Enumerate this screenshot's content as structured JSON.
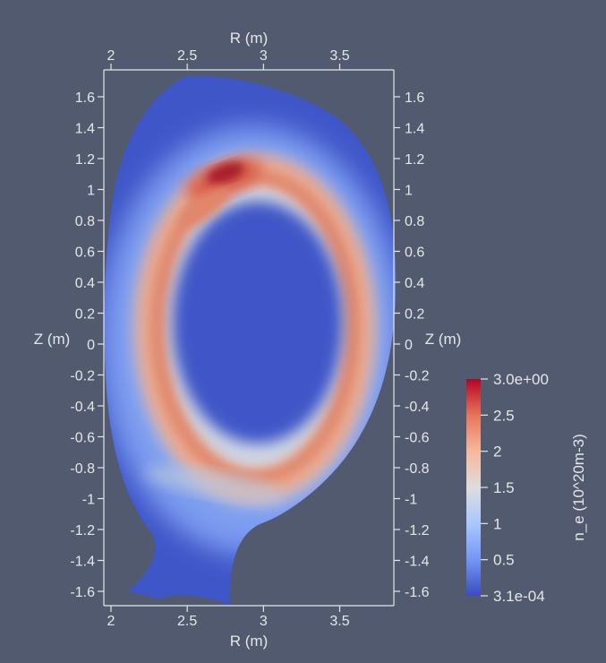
{
  "chart_data": {
    "type": "heatmap",
    "title": "",
    "x_axis": {
      "label": "R (m)",
      "range": [
        1.97,
        3.85
      ],
      "ticks": [
        2,
        2.5,
        3,
        3.5
      ],
      "tick_labels": [
        "2",
        "2.5",
        "3",
        "3.5"
      ]
    },
    "y_axis": {
      "label": "Z (m)",
      "range": [
        -1.68,
        1.72
      ],
      "ticks": [
        1.6,
        1.4,
        1.2,
        1,
        0.8,
        0.6,
        0.4,
        0.2,
        0,
        -0.2,
        -0.4,
        -0.6,
        -0.8,
        -1,
        -1.2,
        -1.4,
        -1.6
      ],
      "tick_labels": [
        "1.6",
        "1.4",
        "1.2",
        "1",
        "0.8",
        "0.6",
        "0.4",
        "0.2",
        "0",
        "-0.2",
        "-0.4",
        "-0.6",
        "-0.8",
        "-1",
        "-1.2",
        "-1.4",
        "-1.6"
      ]
    },
    "colorbar": {
      "title": "n_e (10^20m-3)",
      "min": 0.00031,
      "max": 3.0,
      "min_label": "3.1e-04",
      "max_label": "3.0e+00",
      "ticks": [
        2.5,
        2,
        1.5,
        1,
        0.5
      ],
      "tick_labels": [
        "2.5",
        "2",
        "1.5",
        "1",
        "0.5"
      ],
      "colormap": [
        "#3b4cc0",
        "#7396f5",
        "#aac7fd",
        "#dddddd",
        "#f7b89c",
        "#e7745b",
        "#b40426"
      ]
    },
    "field": {
      "description_values": {
        "core_density": 0.1,
        "edge_density": 0.25,
        "ring_center_R": 2.98,
        "ring_center_Z": 0.22,
        "ring_peak_density": 2.1,
        "hotspot_R": 2.72,
        "hotspot_Z": 1.07,
        "hotspot_peak_density": 3.0
      }
    }
  }
}
